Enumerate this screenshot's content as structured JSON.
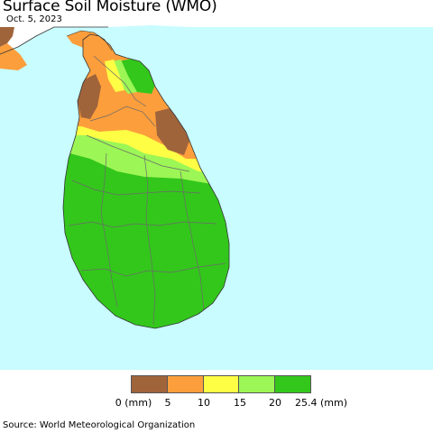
{
  "title": "Surface Soil Moisture (WMO)",
  "date": "Oct. 5, 2023",
  "source": "Source: World Meteorological Organization",
  "colors": {
    "ocean": "#c8fcfe",
    "brown": "#a0643b",
    "orange": "#fd9e3c",
    "yellow": "#fefe44",
    "light_green": "#9cf656",
    "green": "#33c71b"
  },
  "legend": {
    "swatches": [
      {
        "range": "0-5",
        "color": "#a0643b"
      },
      {
        "range": "5-10",
        "color": "#fd9e3c"
      },
      {
        "range": "10-15",
        "color": "#fefe44"
      },
      {
        "range": "15-20",
        "color": "#9cf656"
      },
      {
        "range": "20-25.4",
        "color": "#33c71b"
      }
    ],
    "ticks": [
      "0 (mm)",
      "5",
      "10",
      "15",
      "20",
      "25.4 (mm)"
    ]
  }
}
